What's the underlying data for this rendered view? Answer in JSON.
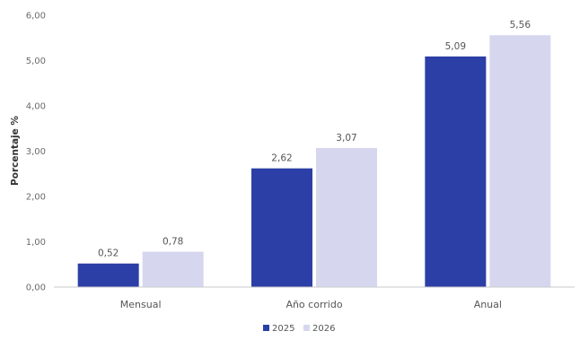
{
  "chart_data": {
    "type": "bar",
    "categories": [
      "Mensual",
      "Año corrido",
      "Anual"
    ],
    "series": [
      {
        "name": "2025",
        "values": [
          0.52,
          2.62,
          5.09
        ],
        "color": "#2c3fa6"
      },
      {
        "name": "2026",
        "values": [
          0.78,
          3.07,
          5.56
        ],
        "color": "#d6d7ef"
      }
    ],
    "value_labels": [
      [
        "0,52",
        "2,62",
        "5,09"
      ],
      [
        "0,78",
        "3,07",
        "5,56"
      ]
    ],
    "ylabel": "Porcentaje %",
    "xlabel": "",
    "ylim": [
      0,
      6
    ],
    "y_ticks": [
      "0,00",
      "1,00",
      "2,00",
      "3,00",
      "4,00",
      "5,00",
      "6,00"
    ],
    "grid": false,
    "legend_position": "bottom-center"
  }
}
